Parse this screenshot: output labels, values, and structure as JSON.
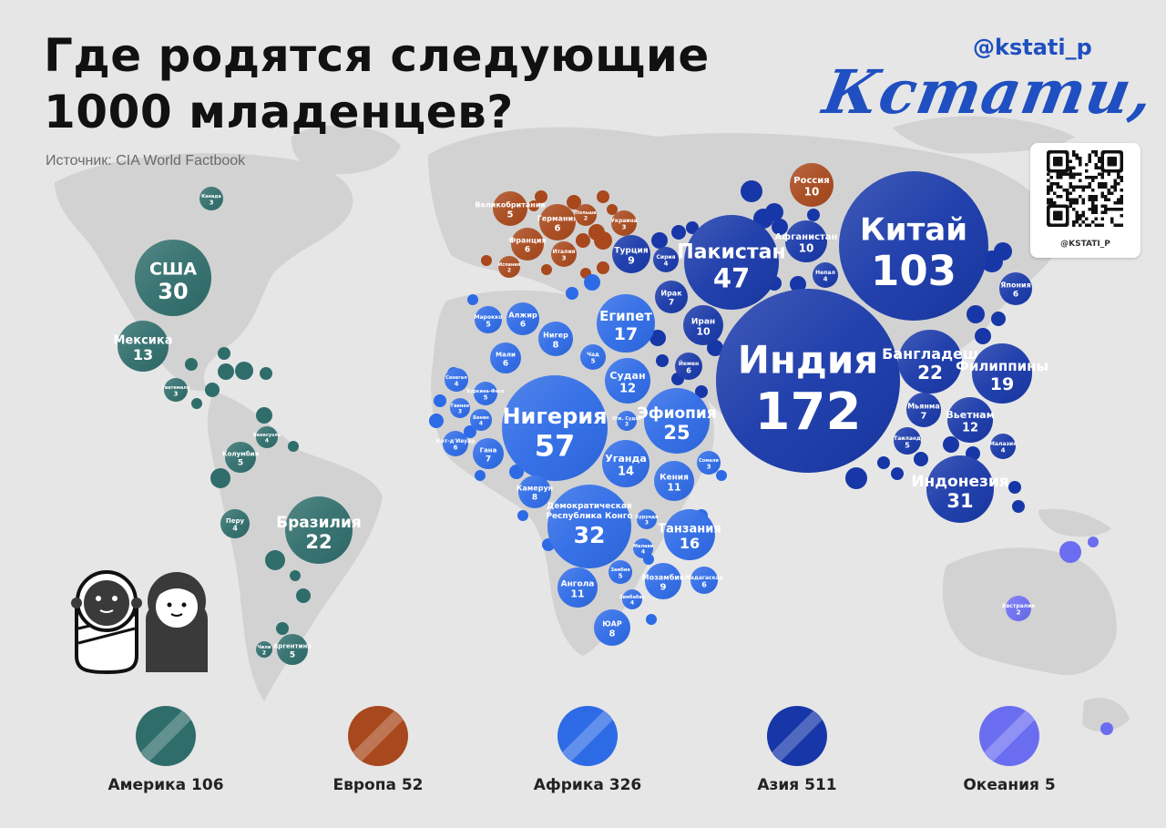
{
  "header": {
    "title_line1": "Где родятся следующие",
    "title_line2": "1000 младенцев?",
    "source": "Источник: CIA World Factbook",
    "handle": "@kstati_p",
    "logo": "Кстати,",
    "qr_caption": "@KSTATI_P"
  },
  "colors": {
    "america": "#2f6d6b",
    "europe": "#a8481c",
    "africa": "#2d6ae6",
    "asia": "#1737a8",
    "oceania": "#6b6df0",
    "background": "#e6e6e6",
    "continent": "#d2d2d2"
  },
  "legend": [
    {
      "region": "america",
      "label": "Америка 106"
    },
    {
      "region": "europe",
      "label": "Европа 52"
    },
    {
      "region": "africa",
      "label": "Африка 326"
    },
    {
      "region": "asia",
      "label": "Азия 511"
    },
    {
      "region": "oceania",
      "label": "Океания 5"
    }
  ],
  "chart_data": {
    "type": "bubble-map",
    "title": "Где родятся следующие 1000 младенцев?",
    "unit": "births per 1000",
    "region_totals": {
      "Америка": 106,
      "Европа": 52,
      "Африка": 326,
      "Азия": 511,
      "Океания": 5
    },
    "points": [
      {
        "name": "Канада",
        "value": 3,
        "region": "america"
      },
      {
        "name": "США",
        "value": 30,
        "region": "america"
      },
      {
        "name": "Мексика",
        "value": 13,
        "region": "america"
      },
      {
        "name": "Гватемала",
        "value": 3,
        "region": "america"
      },
      {
        "name": "Венесуэла",
        "value": 4,
        "region": "america"
      },
      {
        "name": "Колумбия",
        "value": 5,
        "region": "america"
      },
      {
        "name": "Перу",
        "value": 4,
        "region": "america"
      },
      {
        "name": "Бразилия",
        "value": 22,
        "region": "america"
      },
      {
        "name": "Чили",
        "value": 2,
        "region": "america"
      },
      {
        "name": "Аргентина",
        "value": 5,
        "region": "america"
      },
      {
        "name": "Великобритания",
        "value": 5,
        "region": "europe"
      },
      {
        "name": "Германия",
        "value": 6,
        "region": "europe"
      },
      {
        "name": "Польша",
        "value": 2,
        "region": "europe"
      },
      {
        "name": "Украина",
        "value": 3,
        "region": "europe"
      },
      {
        "name": "Франция",
        "value": 6,
        "region": "europe"
      },
      {
        "name": "Италия",
        "value": 3,
        "region": "europe"
      },
      {
        "name": "Испания",
        "value": 2,
        "region": "europe"
      },
      {
        "name": "Россия",
        "value": 10,
        "region": "europe"
      },
      {
        "name": "Марокко",
        "value": 5,
        "region": "africa"
      },
      {
        "name": "Алжир",
        "value": 6,
        "region": "africa"
      },
      {
        "name": "Египет",
        "value": 17,
        "region": "africa"
      },
      {
        "name": "Нигер",
        "value": 8,
        "region": "africa"
      },
      {
        "name": "Мали",
        "value": 6,
        "region": "africa"
      },
      {
        "name": "Чад",
        "value": 5,
        "region": "africa"
      },
      {
        "name": "Судан",
        "value": 12,
        "region": "africa"
      },
      {
        "name": "Сенегал",
        "value": 4,
        "region": "africa"
      },
      {
        "name": "Буркина-Фасо",
        "value": 5,
        "region": "africa"
      },
      {
        "name": "Гвинея",
        "value": 3,
        "region": "africa"
      },
      {
        "name": "Бенин",
        "value": 4,
        "region": "africa"
      },
      {
        "name": "Кот-д'Ивуар",
        "value": 6,
        "region": "africa"
      },
      {
        "name": "Гана",
        "value": 7,
        "region": "africa"
      },
      {
        "name": "Нигерия",
        "value": 57,
        "region": "africa"
      },
      {
        "name": "Эфиопия",
        "value": 25,
        "region": "africa"
      },
      {
        "name": "Юж. Судан",
        "value": 3,
        "region": "africa"
      },
      {
        "name": "Уганда",
        "value": 14,
        "region": "africa"
      },
      {
        "name": "Кения",
        "value": 11,
        "region": "africa"
      },
      {
        "name": "Сомали",
        "value": 3,
        "region": "africa"
      },
      {
        "name": "Камерун",
        "value": 8,
        "region": "africa"
      },
      {
        "name": "Демократическая Республика Конго",
        "value": 32,
        "region": "africa"
      },
      {
        "name": "Бурунди",
        "value": 3,
        "region": "africa"
      },
      {
        "name": "Танзания",
        "value": 16,
        "region": "africa"
      },
      {
        "name": "Малави",
        "value": 4,
        "region": "africa"
      },
      {
        "name": "Замбия",
        "value": 5,
        "region": "africa"
      },
      {
        "name": "Ангола",
        "value": 11,
        "region": "africa"
      },
      {
        "name": "Мозамбик",
        "value": 9,
        "region": "africa"
      },
      {
        "name": "Мадагаскар",
        "value": 6,
        "region": "africa"
      },
      {
        "name": "Зимбабве",
        "value": 4,
        "region": "africa"
      },
      {
        "name": "ЮАР",
        "value": 8,
        "region": "africa"
      },
      {
        "name": "Турция",
        "value": 9,
        "region": "asia"
      },
      {
        "name": "Сирия",
        "value": 4,
        "region": "asia"
      },
      {
        "name": "Ирак",
        "value": 7,
        "region": "asia"
      },
      {
        "name": "Иран",
        "value": 10,
        "region": "asia"
      },
      {
        "name": "Йемен",
        "value": 6,
        "region": "asia"
      },
      {
        "name": "Пакистан",
        "value": 47,
        "region": "asia"
      },
      {
        "name": "Афганистан",
        "value": 10,
        "region": "asia"
      },
      {
        "name": "Непал",
        "value": 4,
        "region": "asia"
      },
      {
        "name": "Китай",
        "value": 103,
        "region": "asia"
      },
      {
        "name": "Япония",
        "value": 6,
        "region": "asia"
      },
      {
        "name": "Индия",
        "value": 172,
        "region": "asia"
      },
      {
        "name": "Бангладеш",
        "value": 22,
        "region": "asia"
      },
      {
        "name": "Филиппины",
        "value": 19,
        "region": "asia"
      },
      {
        "name": "Мьянма",
        "value": 7,
        "region": "asia"
      },
      {
        "name": "Вьетнам",
        "value": 12,
        "region": "asia"
      },
      {
        "name": "Таиланд",
        "value": 5,
        "region": "asia"
      },
      {
        "name": "Малазия",
        "value": 4,
        "region": "asia"
      },
      {
        "name": "Индонезия",
        "value": 31,
        "region": "asia"
      },
      {
        "name": "Австралия",
        "value": 2,
        "region": "oceania"
      }
    ]
  }
}
